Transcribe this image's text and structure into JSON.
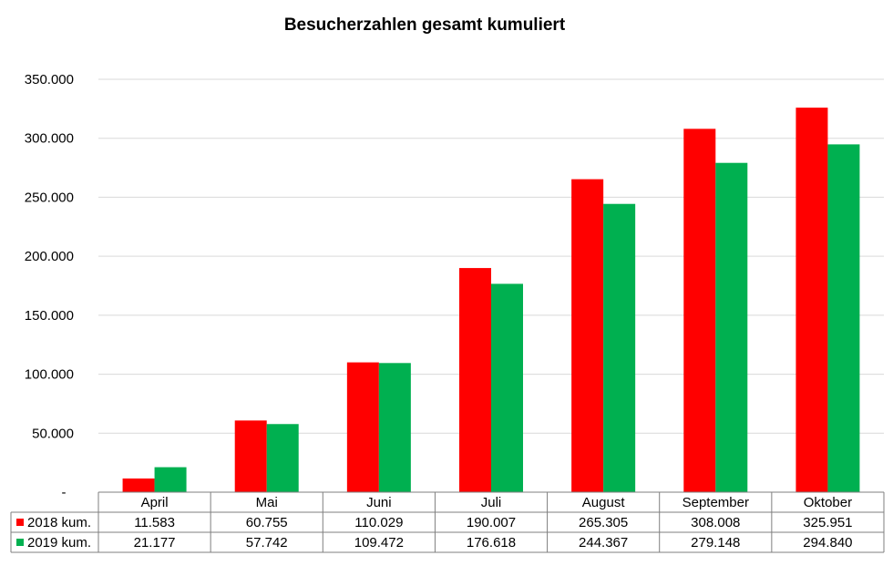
{
  "chart_data": {
    "type": "bar",
    "title": "Besucherzahlen gesamt kumuliert",
    "categories": [
      "April",
      "Mai",
      "Juni",
      "Juli",
      "August",
      "September",
      "Oktober"
    ],
    "series": [
      {
        "name": "2018 kum.",
        "color": "#ff0000",
        "values": [
          11583,
          60755,
          110029,
          190007,
          265305,
          308008,
          325951
        ],
        "labels": [
          "11.583",
          "60.755",
          "110.029",
          "190.007",
          "265.305",
          "308.008",
          "325.951"
        ]
      },
      {
        "name": "2019 kum.",
        "color": "#00b050",
        "values": [
          21177,
          57742,
          109472,
          176618,
          244367,
          279148,
          294840
        ],
        "labels": [
          "21.177",
          "57.742",
          "109.472",
          "176.618",
          "244.367",
          "279.148",
          "294.840"
        ]
      }
    ],
    "ylim": [
      0,
      350000
    ],
    "yticks": [
      {
        "value": 0,
        "label": "-"
      },
      {
        "value": 50000,
        "label": "50.000"
      },
      {
        "value": 100000,
        "label": "100.000"
      },
      {
        "value": 150000,
        "label": "150.000"
      },
      {
        "value": 200000,
        "label": "200.000"
      },
      {
        "value": 250000,
        "label": "250.000"
      },
      {
        "value": 300000,
        "label": "300.000"
      },
      {
        "value": 350000,
        "label": "350.000"
      }
    ],
    "grid": true,
    "legend": "data-table",
    "gridline_color": "#d9d9d9",
    "border_color": "#7f7f7f"
  }
}
